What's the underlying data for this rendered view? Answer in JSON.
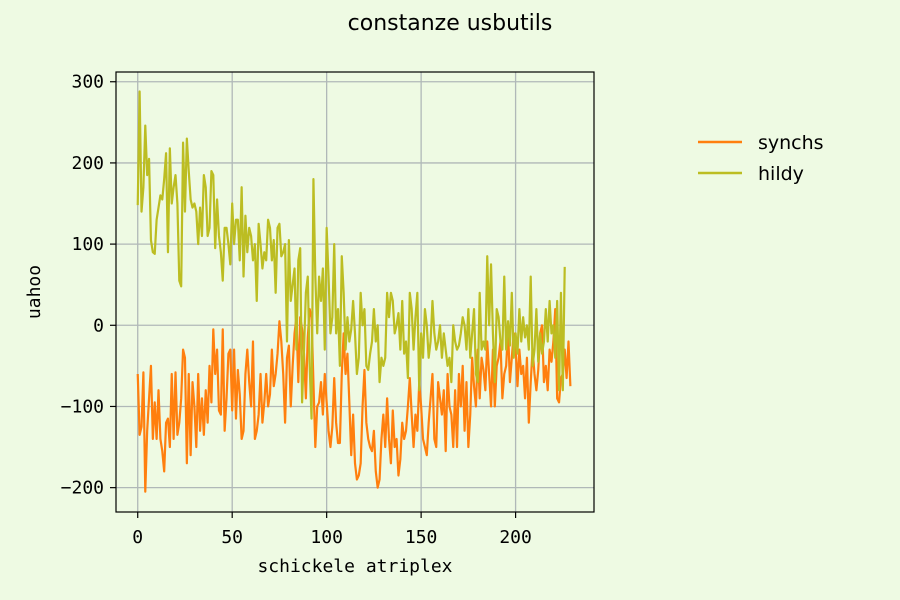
{
  "chart_data": {
    "type": "line",
    "title": "constanze usbutils",
    "xlabel": "schickele atriplex",
    "ylabel": "uahoo",
    "xlim": [
      -11.5,
      241.5
    ],
    "ylim": [
      -230,
      312
    ],
    "x_ticks": [
      0,
      50,
      100,
      150,
      200
    ],
    "y_ticks": [
      -200,
      -100,
      0,
      100,
      200,
      300
    ],
    "x_tick_labels": [
      "0",
      "50",
      "100",
      "150",
      "200"
    ],
    "y_tick_labels": [
      "−200",
      "−100",
      "0",
      "100",
      "200",
      "300"
    ],
    "grid": true,
    "legend_position": "right, outside plot area",
    "colors": {
      "background": "#eefae3",
      "plot_background": "#eefae3",
      "grid": "#b0b8b8",
      "axes": "#000000"
    },
    "series": [
      {
        "name": "synchs",
        "color": "#ff7f0e",
        "x_start": 0,
        "x_step": 1,
        "values": [
          -60,
          -135,
          -125,
          -58,
          -205,
          -130,
          -90,
          -50,
          -140,
          -95,
          -140,
          -80,
          -140,
          -155,
          -180,
          -120,
          -115,
          -150,
          -60,
          -140,
          -58,
          -135,
          -120,
          -90,
          -30,
          -40,
          -170,
          -60,
          -160,
          -70,
          -100,
          -150,
          -60,
          -130,
          -90,
          -135,
          -80,
          -120,
          -50,
          -95,
          -5,
          -60,
          -30,
          -105,
          -110,
          -5,
          -130,
          -90,
          -35,
          -30,
          -105,
          -30,
          -115,
          -55,
          -85,
          -140,
          -130,
          -60,
          -30,
          -70,
          -100,
          -20,
          -140,
          -130,
          -110,
          -60,
          -120,
          -95,
          -60,
          -100,
          -85,
          -30,
          -75,
          -60,
          -35,
          5,
          -20,
          -60,
          -120,
          -40,
          -25,
          -100,
          -50,
          -10,
          10,
          -70,
          10,
          -5,
          -35,
          -90,
          -15,
          20,
          10,
          -70,
          -150,
          -100,
          -95,
          -70,
          -110,
          -60,
          -95,
          -130,
          -150,
          -125,
          -65,
          -120,
          -145,
          -145,
          -60,
          -10,
          -60,
          -35,
          -95,
          -160,
          -110,
          -170,
          -190,
          -185,
          -170,
          -100,
          -55,
          -120,
          -140,
          -150,
          -155,
          -130,
          -180,
          -200,
          -190,
          -140,
          -110,
          -150,
          -90,
          -140,
          -170,
          -105,
          -150,
          -140,
          -185,
          -165,
          -120,
          -140,
          -130,
          -100,
          -65,
          -110,
          -150,
          -110,
          -130,
          -70,
          -100,
          -140,
          -150,
          -160,
          -120,
          -90,
          -60,
          -140,
          -150,
          -70,
          -90,
          -110,
          -80,
          -155,
          -60,
          -100,
          -110,
          -150,
          -80,
          -150,
          -60,
          -100,
          -50,
          -130,
          -70,
          -150,
          -110,
          -40,
          -75,
          -100,
          -30,
          -90,
          -40,
          -55,
          -80,
          -20,
          -60,
          -100,
          -30,
          -100,
          -50,
          -40,
          -20,
          -90,
          -60,
          -50,
          -5,
          -70,
          -40,
          -10,
          -25,
          -75,
          -30,
          -60,
          -50,
          -90,
          -40,
          -120,
          -70,
          -30,
          -60,
          -80,
          -55,
          -10,
          0,
          -70,
          -50,
          -80,
          -30,
          -45,
          -20,
          20,
          -90,
          -95,
          -65,
          -60,
          -30,
          -65,
          -20,
          -75
        ]
      },
      {
        "name": "hildy",
        "color": "#bcbd22",
        "x_start": 0,
        "x_step": 1,
        "values": [
          148,
          288,
          140,
          170,
          246,
          185,
          205,
          105,
          90,
          88,
          130,
          145,
          160,
          155,
          180,
          212,
          90,
          218,
          150,
          170,
          185,
          150,
          55,
          48,
          225,
          140,
          230,
          190,
          155,
          145,
          150,
          140,
          100,
          145,
          110,
          185,
          170,
          110,
          120,
          190,
          185,
          95,
          155,
          110,
          90,
          55,
          120,
          120,
          100,
          75,
          150,
          100,
          130,
          130,
          80,
          170,
          60,
          135,
          90,
          120,
          110,
          80,
          100,
          30,
          125,
          100,
          70,
          90,
          80,
          130,
          120,
          80,
          105,
          40,
          120,
          125,
          85,
          90,
          100,
          -20,
          105,
          30,
          50,
          70,
          -30,
          80,
          95,
          -95,
          -30,
          40,
          60,
          -50,
          -115,
          180,
          60,
          -10,
          60,
          30,
          70,
          -30,
          120,
          60,
          -10,
          10,
          100,
          -10,
          20,
          -50,
          85,
          40,
          -30,
          10,
          -20,
          -5,
          30,
          -10,
          -60,
          -40,
          40,
          0,
          20,
          -50,
          -55,
          -35,
          -20,
          20,
          -20,
          0,
          -70,
          -40,
          -50,
          -40,
          40,
          10,
          40,
          30,
          -10,
          0,
          15,
          -30,
          30,
          -35,
          -20,
          -65,
          40,
          20,
          -30,
          10,
          40,
          -80,
          -10,
          -40,
          20,
          0,
          -40,
          -20,
          30,
          -10,
          -30,
          -20,
          0,
          -40,
          -10,
          -30,
          -50,
          -40,
          -70,
          0,
          -20,
          -30,
          -25,
          -10,
          10,
          0,
          -30,
          20,
          -40,
          -10,
          20,
          -60,
          -70,
          40,
          -30,
          -20,
          -30,
          85,
          0,
          75,
          -10,
          -70,
          20,
          10,
          -20,
          -30,
          60,
          -30,
          5,
          -25,
          40,
          -40,
          -10,
          -35,
          20,
          -20,
          10,
          -15,
          0,
          -30,
          60,
          -50,
          -30,
          20,
          -45,
          -10,
          -35,
          -20,
          20,
          -20,
          30,
          -10,
          0,
          -40,
          30,
          -80,
          40,
          -80,
          72
        ]
      }
    ]
  }
}
